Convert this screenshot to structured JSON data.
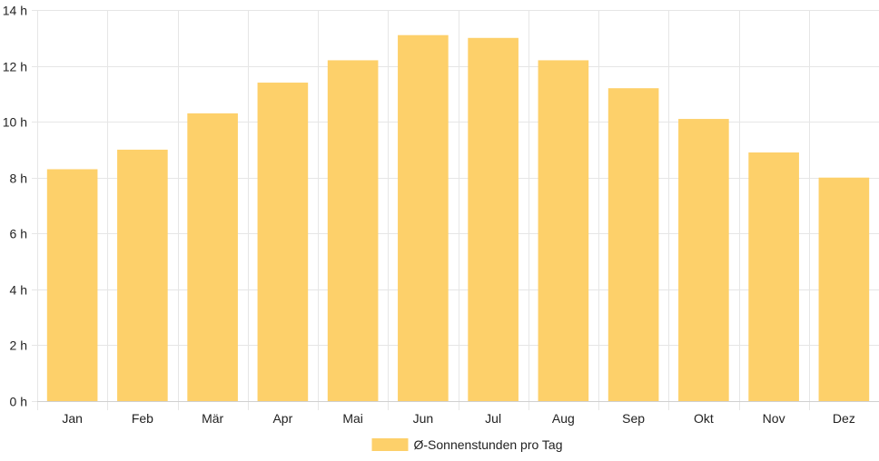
{
  "chart_data": {
    "type": "bar",
    "categories": [
      "Jan",
      "Feb",
      "Mär",
      "Apr",
      "Mai",
      "Jun",
      "Jul",
      "Aug",
      "Sep",
      "Okt",
      "Nov",
      "Dez"
    ],
    "series": [
      {
        "name": "Ø-Sonnenstunden pro Tag",
        "values": [
          8.3,
          9.0,
          10.3,
          11.4,
          12.2,
          13.1,
          13.0,
          12.2,
          11.2,
          10.1,
          8.9,
          8.0
        ],
        "color": "#fdd06a"
      }
    ],
    "ylim": [
      0,
      14
    ],
    "yticks": [
      0,
      2,
      4,
      6,
      8,
      10,
      12,
      14
    ],
    "ytick_labels": [
      "0 h",
      "2 h",
      "4 h",
      "6 h",
      "8 h",
      "10 h",
      "12 h",
      "14 h"
    ],
    "grid": true,
    "grid_color": "#e6e6e6",
    "legend": "bottom-center"
  }
}
